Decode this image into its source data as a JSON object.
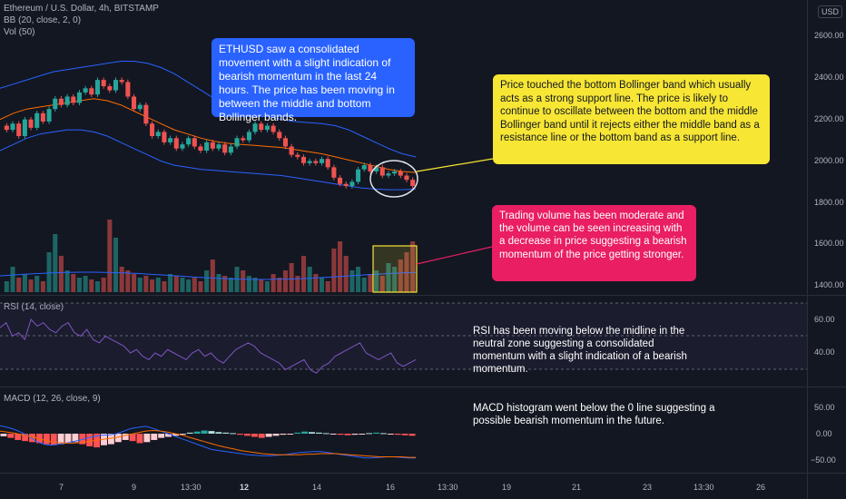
{
  "legends": {
    "symbol": "Ethereum / U.S. Dollar, 4h, BITSTAMP",
    "bb": "BB (20, close, 2, 0)",
    "vol": "Vol (50)",
    "rsi": "RSI (14, close)",
    "macd": "MACD (12, 26, close, 9)"
  },
  "currency_badge": "USD",
  "price_ticks": [
    "2600.00",
    "2400.00",
    "2200.00",
    "2000.00",
    "1800.00",
    "1600.00",
    "1400.00"
  ],
  "rsi_ticks": [
    "60.00",
    "40.00"
  ],
  "macd_ticks": [
    "50.00",
    "0.00",
    "−50.00"
  ],
  "time_ticks": [
    "7",
    "9",
    "13:30",
    "12",
    "14",
    "16",
    "13:30",
    "19",
    "21",
    "23",
    "13:30",
    "26"
  ],
  "callouts": {
    "blue": "ETHUSD saw a consolidated movement with a slight indication of bearish momentum in the last 24 hours. The price has been moving in between the middle and bottom Bollinger bands.",
    "yellow": "Price touched the bottom Bollinger band which usually acts as a strong support line. The price is likely to continue to oscillate between the bottom and the middle Bollinger band until it rejects either the middle band as a resistance line or the bottom band as a support line.",
    "pink": "Trading volume has been moderate and the volume can be seen increasing with a decrease in price suggesting a bearish momentum of the price getting stronger.",
    "rsi": "RSI has been moving below the midline in the neutral zone suggesting a consolidated momentum with a slight indication of a bearish momentum.",
    "macd": "MACD histogram went below the 0 line suggesting a possible bearish momentum in the future."
  },
  "colors": {
    "background": "#131722",
    "up": "#26a69a",
    "down": "#ef5350",
    "bb_band": "#2962ff",
    "bb_basis": "#ff6d00",
    "rsi_line": "#7e57c2",
    "macd_line": "#2962ff",
    "signal_line": "#ff6d00",
    "callout_blue": "#2962ff",
    "callout_yellow": "#f7e634",
    "callout_pink": "#e91e63"
  },
  "chart_data": {
    "type": "candlestick",
    "ylim": [
      1380,
      2700
    ],
    "close": [
      2150,
      2180,
      2120,
      2200,
      2160,
      2230,
      2190,
      2250,
      2300,
      2270,
      2310,
      2280,
      2330,
      2350,
      2320,
      2390,
      2360,
      2340,
      2390,
      2380,
      2310,
      2250,
      2270,
      2180,
      2120,
      2140,
      2090,
      2110,
      2060,
      2080,
      2110,
      2070,
      2050,
      2090,
      2060,
      2080,
      2040,
      2070,
      2110,
      2100,
      2140,
      2180,
      2150,
      2170,
      2140,
      2110,
      2070,
      2030,
      2020,
      1990,
      2000,
      1990,
      2010,
      1970,
      1920,
      1890,
      1880,
      1900,
      1960,
      1980,
      1950,
      1970,
      1930,
      1940,
      1950,
      1930,
      1910,
      1880
    ],
    "bb_upper": [
      2350,
      2370,
      2390,
      2410,
      2430,
      2440,
      2450,
      2460,
      2470,
      2480,
      2480,
      2470,
      2450,
      2420,
      2380,
      2340,
      2300,
      2270,
      2250,
      2230,
      2215,
      2200,
      2190,
      2185,
      2180,
      2170,
      2150,
      2120,
      2090,
      2060,
      2035,
      2020
    ],
    "bb_basis": [
      2200,
      2230,
      2250,
      2260,
      2270,
      2280,
      2290,
      2300,
      2290,
      2270,
      2240,
      2210,
      2180,
      2150,
      2130,
      2110,
      2095,
      2085,
      2080,
      2075,
      2070,
      2065,
      2055,
      2045,
      2035,
      2020,
      2005,
      1990,
      1975,
      1960,
      1950,
      1945
    ],
    "bb_lower": [
      2050,
      2080,
      2110,
      2130,
      2140,
      2150,
      2150,
      2140,
      2120,
      2090,
      2060,
      2030,
      2000,
      1980,
      1970,
      1960,
      1955,
      1950,
      1945,
      1940,
      1935,
      1930,
      1920,
      1910,
      1900,
      1890,
      1880,
      1870,
      1865,
      1862,
      1862,
      1865
    ],
    "volume": [
      6,
      14,
      8,
      10,
      7,
      9,
      6,
      22,
      32,
      20,
      12,
      10,
      8,
      9,
      7,
      6,
      8,
      40,
      30,
      14,
      12,
      10,
      8,
      9,
      7,
      8,
      6,
      10,
      9,
      8,
      7,
      8,
      6,
      12,
      18,
      10,
      9,
      8,
      14,
      12,
      9,
      8,
      7,
      6,
      10,
      8,
      12,
      16,
      9,
      20,
      14,
      10,
      8,
      6,
      24,
      28,
      20,
      12,
      14,
      8,
      10,
      12,
      9,
      16,
      14,
      18,
      22,
      28
    ],
    "rsi": [
      55,
      58,
      50,
      52,
      48,
      60,
      56,
      58,
      54,
      52,
      56,
      58,
      52,
      50,
      54,
      48,
      46,
      50,
      48,
      46,
      44,
      40,
      42,
      38,
      36,
      40,
      38,
      42,
      40,
      38,
      36,
      40,
      42,
      38,
      40,
      36,
      34,
      38,
      42,
      44,
      46,
      44,
      40,
      38,
      36,
      34,
      30,
      32,
      34,
      36,
      30,
      28,
      32,
      34,
      38,
      40,
      42,
      44,
      46,
      40,
      38,
      36,
      38,
      40,
      34,
      32,
      34,
      36
    ],
    "macd_line": [
      15,
      12,
      8,
      2,
      -5,
      -15,
      -20,
      -22,
      -20,
      -18,
      -15,
      -12,
      -8,
      -5,
      -3,
      -2,
      0,
      5,
      10,
      12,
      14,
      10,
      5,
      0,
      -5,
      -10,
      -15,
      -20,
      -25,
      -30,
      -32,
      -34,
      -36,
      -38,
      -40,
      -41,
      -42,
      -42,
      -41,
      -40,
      -38,
      -36,
      -35,
      -34,
      -34,
      -36,
      -38,
      -40,
      -42,
      -44,
      -46,
      -46,
      -45,
      -44,
      -44,
      -45,
      -46,
      -46
    ],
    "signal_line": [
      5,
      3,
      1,
      -2,
      -5,
      -8,
      -12,
      -15,
      -17,
      -18,
      -18,
      -17,
      -15,
      -13,
      -11,
      -9,
      -7,
      -4,
      -1,
      2,
      5,
      6,
      5,
      3,
      0,
      -3,
      -7,
      -11,
      -15,
      -19,
      -23,
      -26,
      -29,
      -32,
      -34,
      -36,
      -38,
      -39,
      -40,
      -40,
      -40,
      -40,
      -39,
      -39,
      -38,
      -38,
      -38,
      -39,
      -40,
      -41,
      -42,
      -43,
      -44,
      -44,
      -44,
      -44,
      -45,
      -45
    ],
    "macd_hist": [
      -5,
      -8,
      -12,
      -14,
      -16,
      -18,
      -20,
      -22,
      -20,
      -18,
      -16,
      -20,
      -24,
      -26,
      -22,
      -20,
      -16,
      -12,
      -14,
      -18,
      -16,
      -12,
      -8,
      -6,
      -4,
      -2,
      2,
      4,
      6,
      5,
      3,
      2,
      1,
      -2,
      -4,
      -6,
      -8,
      -6,
      -4,
      -2,
      -1,
      2,
      4,
      3,
      2,
      1,
      -1,
      -2,
      -3,
      -2,
      -1,
      1,
      2,
      1,
      -1,
      -2,
      -3,
      -4
    ]
  }
}
